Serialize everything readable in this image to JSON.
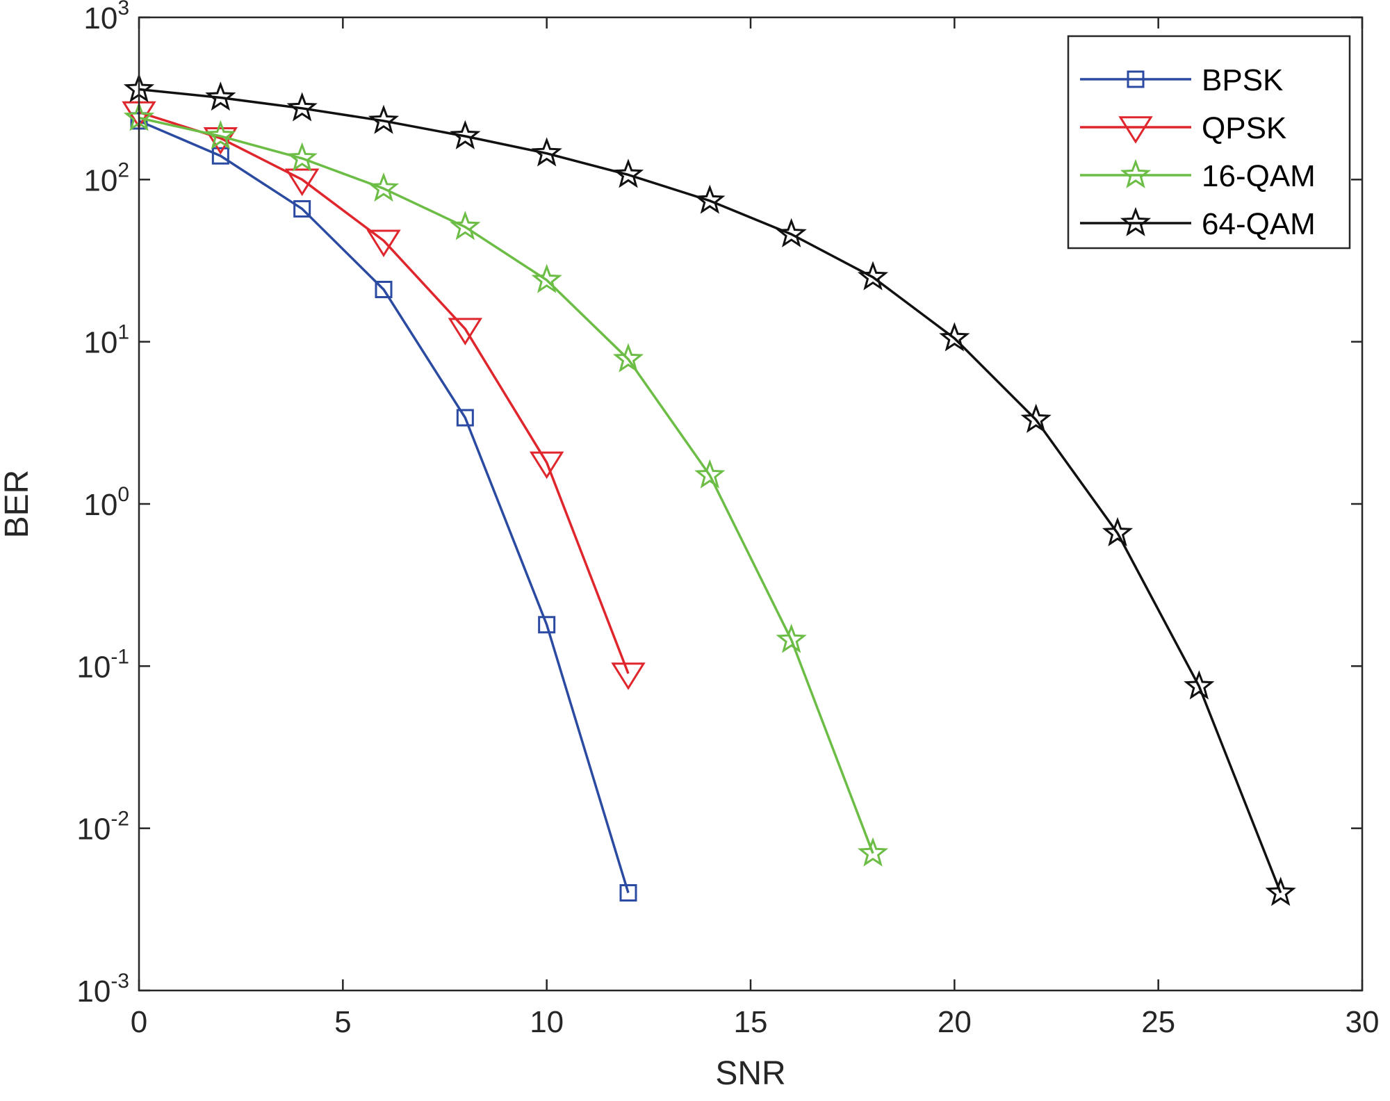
{
  "chart_data": {
    "type": "line",
    "title": "",
    "xlabel": "SNR",
    "ylabel": "BER",
    "xlim": [
      0,
      30
    ],
    "ylim": [
      0.001,
      1000
    ],
    "yscale": "log",
    "grid": false,
    "legend_position": "top-right",
    "x_ticks": [
      "0",
      "5",
      "10",
      "15",
      "20",
      "25",
      "30"
    ],
    "y_ticks": [
      {
        "base": "10",
        "exp": "-3"
      },
      {
        "base": "10",
        "exp": "-2"
      },
      {
        "base": "10",
        "exp": "-1"
      },
      {
        "base": "10",
        "exp": "0"
      },
      {
        "base": "10",
        "exp": "1"
      },
      {
        "base": "10",
        "exp": "2"
      },
      {
        "base": "10",
        "exp": "3"
      }
    ],
    "series": [
      {
        "name": "BPSK",
        "color": "#2b4aa1",
        "marker": "square",
        "x": [
          0,
          2,
          4,
          6,
          8,
          10,
          12
        ],
        "y": [
          230,
          140,
          66,
          21,
          3.4,
          0.18,
          0.004
        ]
      },
      {
        "name": "QPSK",
        "color": "#e0262d",
        "marker": "triangle-down",
        "x": [
          0,
          2,
          4,
          6,
          8,
          10,
          12
        ],
        "y": [
          260,
          180,
          100,
          42,
          12,
          1.8,
          0.09
        ]
      },
      {
        "name": "16-QAM",
        "color": "#6cbd45",
        "marker": "star",
        "x": [
          0,
          2,
          4,
          6,
          8,
          10,
          12,
          14,
          16,
          18
        ],
        "y": [
          240,
          185,
          135,
          88,
          51,
          24,
          7.8,
          1.5,
          0.145,
          0.007
        ]
      },
      {
        "name": "64-QAM",
        "color": "#111111",
        "marker": "star",
        "x": [
          0,
          2,
          4,
          6,
          8,
          10,
          12,
          14,
          16,
          18,
          20,
          22,
          24,
          26,
          28
        ],
        "y": [
          360,
          320,
          275,
          230,
          185,
          145,
          107,
          74,
          46,
          25,
          10.5,
          3.3,
          0.66,
          0.075,
          0.004
        ]
      }
    ]
  }
}
